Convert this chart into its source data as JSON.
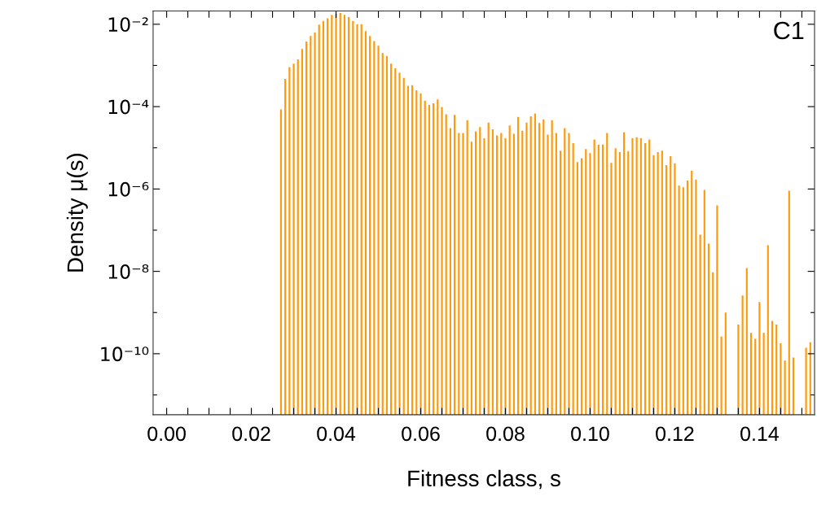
{
  "chart_data": {
    "type": "bar",
    "xlabel": "Fitness class, s",
    "ylabel": "Density μ(s)",
    "annotations": [
      "C1"
    ],
    "log": "y",
    "grid": false,
    "color": "#ff9a0a",
    "x": [
      0.027,
      0.028,
      0.029,
      0.03,
      0.031,
      0.032,
      0.033,
      0.034,
      0.035,
      0.036,
      0.037,
      0.038,
      0.039,
      0.04,
      0.041,
      0.042,
      0.043,
      0.044,
      0.045,
      0.046,
      0.047,
      0.048,
      0.049,
      0.05,
      0.051,
      0.052,
      0.053,
      0.054,
      0.055,
      0.056,
      0.057,
      0.058,
      0.059,
      0.06,
      0.061,
      0.062,
      0.063,
      0.064,
      0.065,
      0.066,
      0.067,
      0.068,
      0.069,
      0.07,
      0.071,
      0.072,
      0.073,
      0.074,
      0.075,
      0.076,
      0.077,
      0.078,
      0.079,
      0.08,
      0.081,
      0.082,
      0.083,
      0.084,
      0.085,
      0.086,
      0.087,
      0.088,
      0.089,
      0.09,
      0.091,
      0.092,
      0.093,
      0.094,
      0.095,
      0.096,
      0.097,
      0.098,
      0.099,
      0.1,
      0.101,
      0.102,
      0.103,
      0.104,
      0.105,
      0.106,
      0.107,
      0.108,
      0.109,
      0.11,
      0.111,
      0.112,
      0.113,
      0.114,
      0.115,
      0.116,
      0.117,
      0.118,
      0.119,
      0.12,
      0.121,
      0.122,
      0.123,
      0.124,
      0.125,
      0.126,
      0.127,
      0.128,
      0.129,
      0.13,
      0.131,
      0.132,
      0.133,
      0.134,
      0.135,
      0.136,
      0.137,
      0.138,
      0.139,
      0.14,
      0.141,
      0.142,
      0.143,
      0.144,
      0.145,
      0.146,
      0.147,
      0.148,
      0.149,
      0.15,
      0.151,
      0.152
    ],
    "values": [
      8.6e-05,
      0.00047,
      0.00091,
      0.0011,
      0.0014,
      0.0025,
      0.0038,
      0.0052,
      0.0063,
      0.0098,
      0.012,
      0.014,
      0.017,
      0.018,
      0.019,
      0.017,
      0.015,
      0.012,
      0.01,
      0.01,
      0.0068,
      0.0052,
      0.0039,
      0.003,
      0.002,
      0.0017,
      0.0011,
      0.00085,
      0.00066,
      0.0005,
      0.00032,
      0.00033,
      0.00025,
      0.00021,
      0.00014,
      0.00011,
      0.00012,
      0.00015,
      9.8e-05,
      6.5e-05,
      3e-05,
      6.3e-05,
      2.3e-05,
      2.3e-05,
      4.7e-05,
      1.4e-05,
      2.5e-05,
      3.2e-05,
      1.7e-05,
      4.1e-05,
      2.8e-05,
      2e-05,
      2.3e-05,
      1.7e-05,
      3.5e-05,
      2.2e-05,
      5.6e-05,
      2.6e-05,
      4.1e-05,
      5.8e-05,
      6.8e-05,
      4e-05,
      4.9e-05,
      2.1e-05,
      4.7e-05,
      2.3e-05,
      8.5e-06,
      3e-05,
      2.3e-05,
      1.3e-05,
      4.5e-06,
      5.6e-06,
      9.3e-06,
      7.4e-06,
      1.6e-05,
      1.2e-05,
      1.2e-05,
      2.3e-05,
      4.3e-06,
      9.8e-06,
      7.9e-06,
      2.4e-05,
      8.3e-06,
      1.7e-05,
      1.8e-05,
      1.7e-05,
      1.3e-05,
      1.6e-05,
      6.6e-06,
      7.9e-06,
      8.5e-06,
      3.8e-06,
      6.3e-06,
      4.2e-06,
      1.2e-06,
      1.1e-06,
      1.6e-06,
      2.8e-06,
      1.7e-06,
      7.8e-08,
      9.5e-07,
      4.7e-08,
      9.5e-09,
      4e-07,
      2.6e-10,
      1e-09,
      null,
      null,
      5.1e-10,
      2.6e-09,
      1.2e-08,
      3.2e-10,
      2.3e-10,
      1.8e-09,
      3.2e-10,
      4.3e-08,
      6.3e-10,
      5.1e-10,
      1.8e-10,
      6.8e-11,
      9.1e-07,
      8.1e-11,
      null,
      null,
      1.4e-10,
      1.9e-10
    ],
    "xlim": [
      -0.0032,
      0.153
    ],
    "xticks": [
      {
        "value": 0.0,
        "label": "0.00"
      },
      {
        "value": 0.005,
        "label": null
      },
      {
        "value": 0.01,
        "label": null
      },
      {
        "value": 0.015,
        "label": null
      },
      {
        "value": 0.02,
        "label": "0.02"
      },
      {
        "value": 0.025,
        "label": null
      },
      {
        "value": 0.03,
        "label": null
      },
      {
        "value": 0.035,
        "label": null
      },
      {
        "value": 0.04,
        "label": "0.04"
      },
      {
        "value": 0.045,
        "label": null
      },
      {
        "value": 0.05,
        "label": null
      },
      {
        "value": 0.055,
        "label": null
      },
      {
        "value": 0.06,
        "label": "0.06"
      },
      {
        "value": 0.065,
        "label": null
      },
      {
        "value": 0.07,
        "label": null
      },
      {
        "value": 0.075,
        "label": null
      },
      {
        "value": 0.08,
        "label": "0.08"
      },
      {
        "value": 0.085,
        "label": null
      },
      {
        "value": 0.09,
        "label": null
      },
      {
        "value": 0.095,
        "label": null
      },
      {
        "value": 0.1,
        "label": "0.10"
      },
      {
        "value": 0.105,
        "label": null
      },
      {
        "value": 0.11,
        "label": null
      },
      {
        "value": 0.115,
        "label": null
      },
      {
        "value": 0.12,
        "label": "0.12"
      },
      {
        "value": 0.125,
        "label": null
      },
      {
        "value": 0.13,
        "label": null
      },
      {
        "value": 0.135,
        "label": null
      },
      {
        "value": 0.14,
        "label": "0.14"
      },
      {
        "value": 0.145,
        "label": null
      },
      {
        "value": 0.15,
        "label": null
      }
    ],
    "ylim": [
      3.3e-12,
      0.021
    ],
    "yticks": [
      {
        "value": 0.01,
        "label": "10⁻²"
      },
      {
        "value": 0.001,
        "label": null
      },
      {
        "value": 0.0001,
        "label": "10⁻⁴"
      },
      {
        "value": 1e-05,
        "label": null
      },
      {
        "value": 1e-06,
        "label": "10⁻⁶"
      },
      {
        "value": 1e-07,
        "label": null
      },
      {
        "value": 1e-08,
        "label": "10⁻⁸"
      },
      {
        "value": 1e-09,
        "label": null
      },
      {
        "value": 1e-10,
        "label": "10⁻¹⁰"
      },
      {
        "value": 1e-11,
        "label": null
      }
    ]
  }
}
